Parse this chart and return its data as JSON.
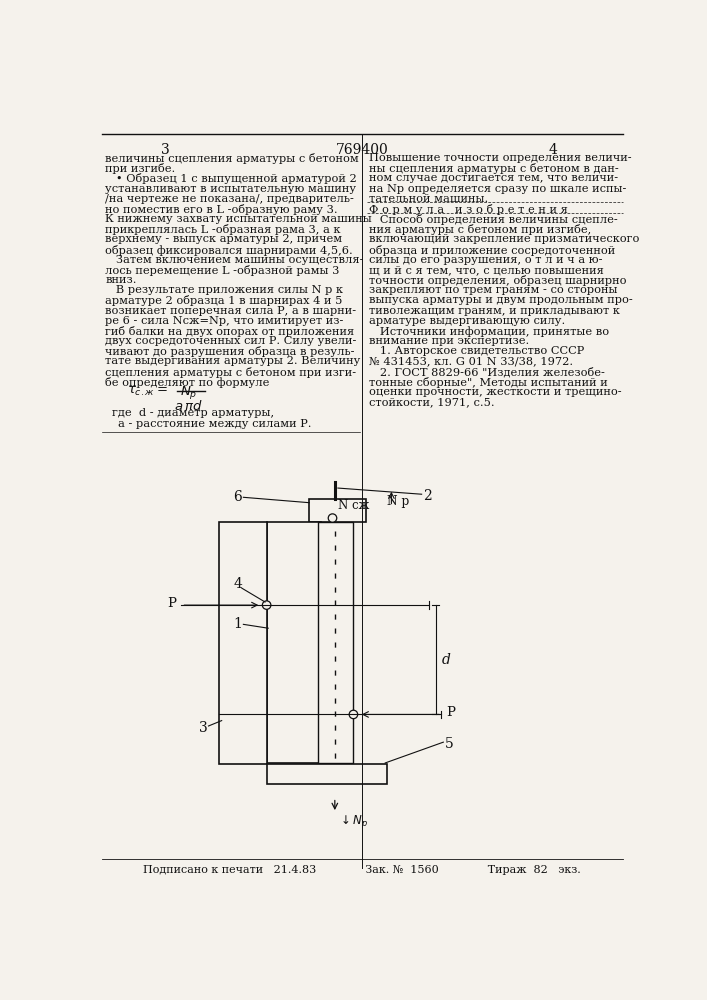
{
  "bg_color": "#f5f2ec",
  "text_color": "#111111",
  "page_num_left": "3",
  "page_num_center": "769400",
  "page_num_right": "4",
  "left_col": [
    "величины сцепления арматуры с бетоном",
    "при изгибе.",
    "   • Образец 1 с выпущенной арматурой 2",
    "устанавливают в испытательную машину",
    "/на чертеже не показана/, предваритель-",
    "но поместив его в L -образную раму 3.",
    "К нижнему захвату испытательной машины",
    "прикреплялась L -образная рама 3, а к",
    "верхнему - выпуск арматуры 2, причем",
    "образец фиксировался шарнирами 4,5,6.",
    "   Затем включением машины осуществля-",
    "лось перемещение L -образной рамы 3",
    "вниз.",
    "   В результате приложения силы N р к",
    "арматуре 2 образца 1 в шарнирах 4 и 5",
    "возникает поперечная сила Р, а в шарни-",
    "ре 6 - сила Nсж=Nр, что имитирует из-",
    "гиб балки на двух опорах от приложения",
    "двух сосредоточенных сил Р. Силу увели-",
    "чивают до разрушения образца в резуль-",
    "тате выдергивания арматуры 2. Величину",
    "сцепления арматуры с бетоном при изги-",
    "бе определяют по формуле"
  ],
  "right_col": [
    "Повышение точности определения величи-",
    "ны сцепления арматуры с бетоном в дан-",
    "ном случае достигается тем, что величи-",
    "на Nр определяется сразу по шкале испы-",
    "тательной машины.",
    "Ф о р м у л а   и з о б р е т е н и я",
    "   Способ определения величины сцепле-",
    "ния арматуры с бетоном при изгибе,",
    "включающий закрепление призматического",
    "образца и приложение сосредоточенной",
    "силы до его разрушения, о т л и ч а ю-",
    "щ и й с я тем, что, с целью повышения",
    "точности определения, образец шарнирно",
    "закрепляют по трем граням - со стороны",
    "выпуска арматуры и двум продольным про-",
    "тиволежащим граням, и прикладывают к",
    "арматуре выдергивающую силу.",
    "   Источники информации, принятые во",
    "внимание при экспертизе.",
    "   1. Авторское свидетельство СССР",
    "№ 431453, кл. G 01 N 33/38, 1972.",
    "   2. ГОСТ 8829-66 \"Изделия железобе-",
    "тонные сборные\", Методы испытаний и",
    "оценки прочности, жесткости и трещино-",
    "стойкости, 1971, с.5."
  ],
  "footer": "Подписано к печати   21.4.83              Зак. №  1560              Тираж  82   экз."
}
